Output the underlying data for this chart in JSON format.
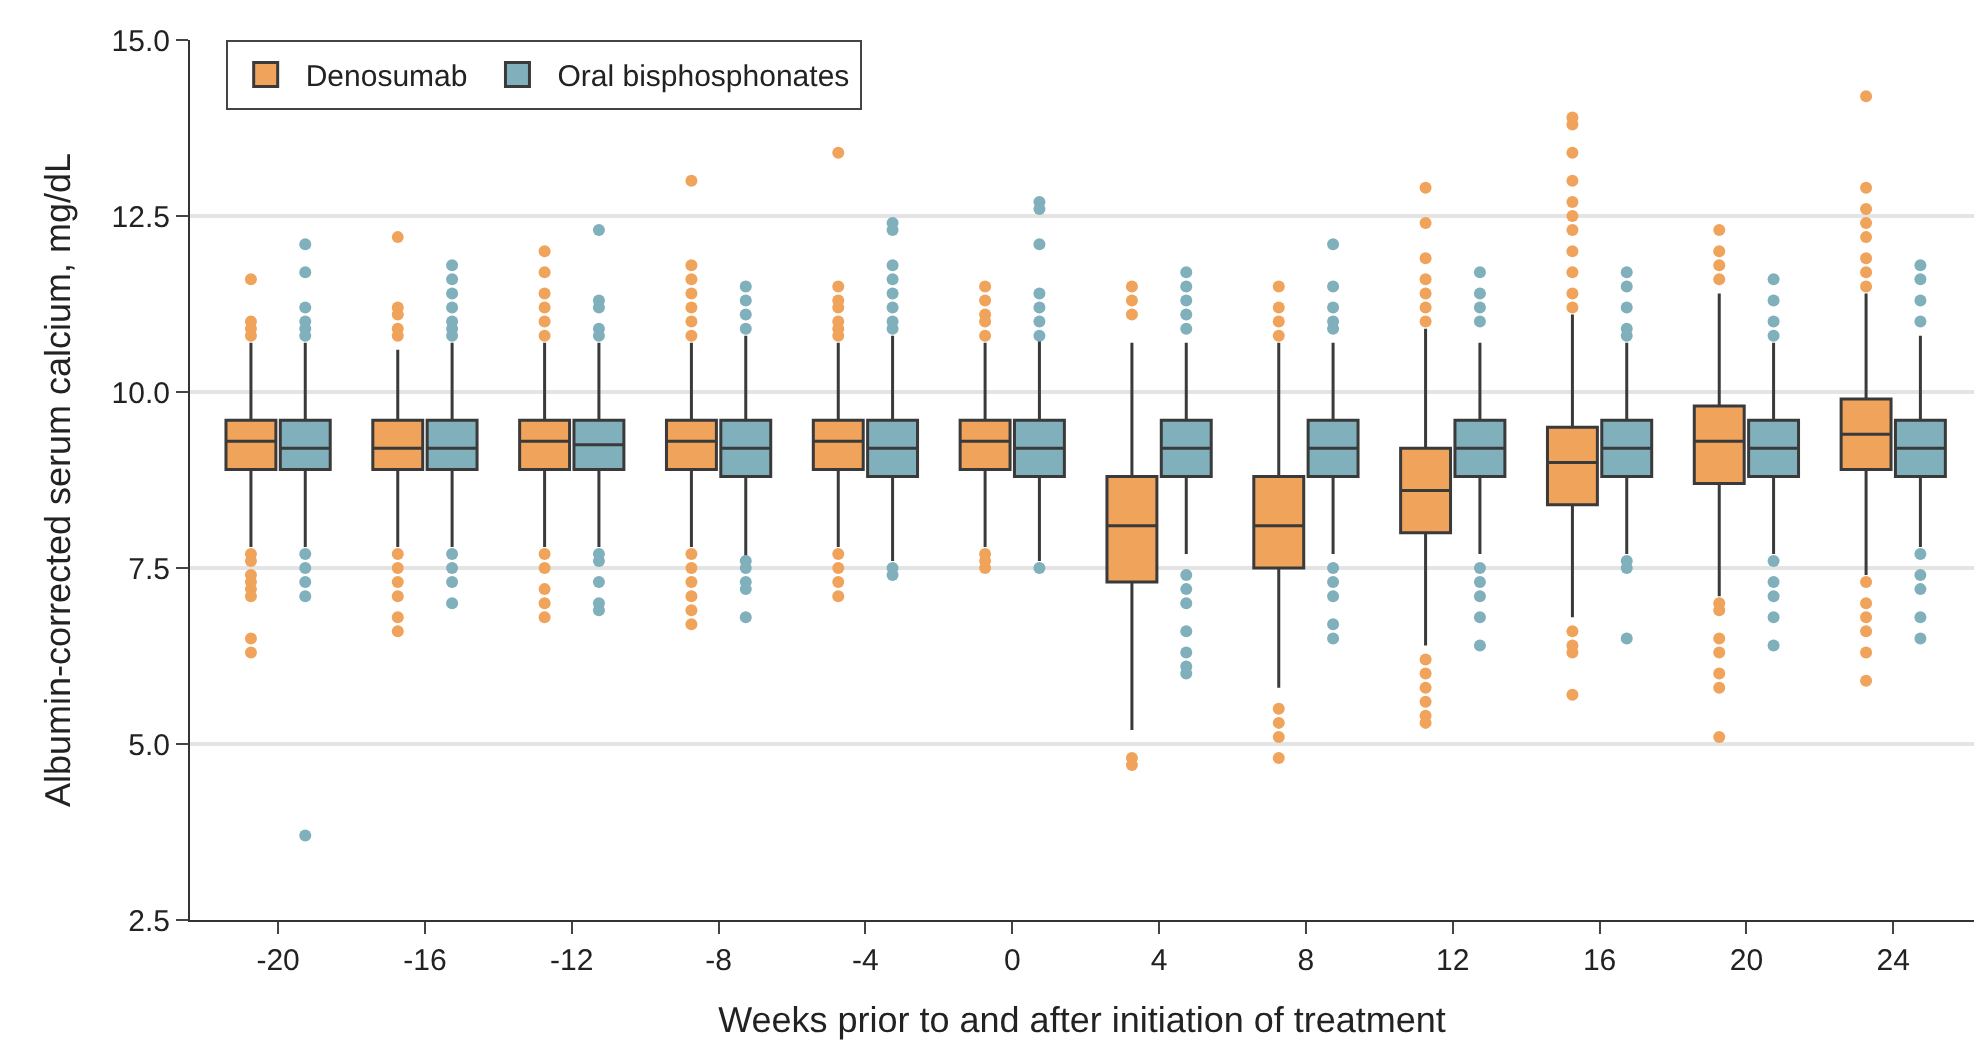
{
  "chart_data": {
    "type": "box",
    "xlabel": "Weeks prior to and after initiation of treatment",
    "ylabel": "Albumin-corrected serum calcium, mg/dL",
    "categories": [
      "-20",
      "-16",
      "-12",
      "-8",
      "-4",
      "0",
      "4",
      "8",
      "12",
      "16",
      "20",
      "24"
    ],
    "ylim": [
      2.5,
      15.0
    ],
    "yticks": [
      {
        "value": 2.5,
        "label": "2.5"
      },
      {
        "value": 5.0,
        "label": "5.0"
      },
      {
        "value": 7.5,
        "label": "7.5"
      },
      {
        "value": 10.0,
        "label": "10.0"
      },
      {
        "value": 12.5,
        "label": "12.5"
      },
      {
        "value": 15.0,
        "label": "15.0"
      }
    ],
    "grid": "y",
    "legend": "top left",
    "series": [
      {
        "name": "Denosumab",
        "color": "#f0a35a",
        "boxes": [
          {
            "low": 7.8,
            "q1": 8.9,
            "median": 9.3,
            "q3": 9.6,
            "high": 10.7,
            "outliers": [
              11.6,
              11.0,
              10.9,
              10.8,
              7.7,
              7.6,
              7.4,
              7.3,
              7.2,
              7.1,
              6.5,
              6.3
            ]
          },
          {
            "low": 7.8,
            "q1": 8.9,
            "median": 9.2,
            "q3": 9.6,
            "high": 10.6,
            "outliers": [
              12.2,
              11.2,
              11.1,
              10.9,
              10.8,
              7.7,
              7.5,
              7.3,
              7.1,
              6.8,
              6.6
            ]
          },
          {
            "low": 7.8,
            "q1": 8.9,
            "median": 9.3,
            "q3": 9.6,
            "high": 10.7,
            "outliers": [
              12.0,
              11.7,
              11.4,
              11.2,
              11.0,
              10.8,
              7.7,
              7.5,
              7.2,
              7.0,
              6.8
            ]
          },
          {
            "low": 7.8,
            "q1": 8.9,
            "median": 9.3,
            "q3": 9.6,
            "high": 10.7,
            "outliers": [
              13.0,
              11.8,
              11.6,
              11.4,
              11.2,
              11.0,
              10.8,
              7.7,
              7.5,
              7.3,
              7.1,
              6.9,
              6.7
            ]
          },
          {
            "low": 7.8,
            "q1": 8.9,
            "median": 9.3,
            "q3": 9.6,
            "high": 10.7,
            "outliers": [
              13.4,
              11.5,
              11.3,
              11.2,
              11.0,
              10.9,
              10.8,
              7.7,
              7.5,
              7.3,
              7.1
            ]
          },
          {
            "low": 7.8,
            "q1": 8.9,
            "median": 9.3,
            "q3": 9.6,
            "high": 10.7,
            "outliers": [
              11.5,
              11.3,
              11.1,
              11.0,
              10.8,
              7.7,
              7.6,
              7.5
            ]
          },
          {
            "low": 5.2,
            "q1": 7.3,
            "median": 8.1,
            "q3": 8.8,
            "high": 10.7,
            "outliers": [
              11.5,
              11.3,
              11.1,
              4.8,
              4.7
            ]
          },
          {
            "low": 5.8,
            "q1": 7.5,
            "median": 8.1,
            "q3": 8.8,
            "high": 10.7,
            "outliers": [
              11.5,
              11.2,
              11.0,
              10.8,
              5.5,
              5.3,
              5.1,
              4.8
            ]
          },
          {
            "low": 6.4,
            "q1": 8.0,
            "median": 8.6,
            "q3": 9.2,
            "high": 10.9,
            "outliers": [
              12.9,
              12.4,
              11.9,
              11.6,
              11.4,
              11.2,
              11.0,
              6.2,
              6.0,
              5.8,
              5.6,
              5.4,
              5.3
            ]
          },
          {
            "low": 6.8,
            "q1": 8.4,
            "median": 9.0,
            "q3": 9.5,
            "high": 11.1,
            "outliers": [
              13.9,
              13.8,
              13.4,
              13.0,
              12.7,
              12.5,
              12.3,
              12.0,
              11.7,
              11.4,
              11.2,
              6.6,
              6.4,
              6.3,
              5.7
            ]
          },
          {
            "low": 7.1,
            "q1": 8.7,
            "median": 9.3,
            "q3": 9.8,
            "high": 11.4,
            "outliers": [
              12.3,
              12.0,
              11.8,
              11.6,
              7.0,
              6.9,
              6.5,
              6.3,
              6.0,
              5.8,
              5.1
            ]
          },
          {
            "low": 7.4,
            "q1": 8.9,
            "median": 9.4,
            "q3": 9.9,
            "high": 11.4,
            "outliers": [
              14.2,
              12.9,
              12.6,
              12.4,
              12.2,
              11.9,
              11.7,
              11.5,
              7.3,
              7.0,
              6.8,
              6.6,
              6.3,
              5.9
            ]
          }
        ]
      },
      {
        "name": "Oral bisphosphonates",
        "color": "#7fb0bc",
        "boxes": [
          {
            "low": 7.8,
            "q1": 8.9,
            "median": 9.2,
            "q3": 9.6,
            "high": 10.7,
            "outliers": [
              12.1,
              11.7,
              11.2,
              11.0,
              10.9,
              10.8,
              7.7,
              7.5,
              7.3,
              7.1,
              3.7
            ]
          },
          {
            "low": 7.8,
            "q1": 8.9,
            "median": 9.2,
            "q3": 9.6,
            "high": 10.7,
            "outliers": [
              11.8,
              11.6,
              11.4,
              11.2,
              11.0,
              10.9,
              10.8,
              7.7,
              7.5,
              7.3,
              7.0
            ]
          },
          {
            "low": 7.8,
            "q1": 8.9,
            "median": 9.25,
            "q3": 9.6,
            "high": 10.7,
            "outliers": [
              12.3,
              11.3,
              11.2,
              10.9,
              10.8,
              7.7,
              7.6,
              7.3,
              7.0,
              6.9
            ]
          },
          {
            "low": 7.6,
            "q1": 8.8,
            "median": 9.2,
            "q3": 9.6,
            "high": 10.8,
            "outliers": [
              11.5,
              11.3,
              11.1,
              10.9,
              7.6,
              7.5,
              7.3,
              7.2,
              6.8
            ]
          },
          {
            "low": 7.6,
            "q1": 8.8,
            "median": 9.2,
            "q3": 9.6,
            "high": 10.8,
            "outliers": [
              12.4,
              12.3,
              11.8,
              11.6,
              11.4,
              11.2,
              11.0,
              10.9,
              7.5,
              7.4
            ]
          },
          {
            "low": 7.6,
            "q1": 8.8,
            "median": 9.2,
            "q3": 9.6,
            "high": 10.8,
            "outliers": [
              12.7,
              12.6,
              12.1,
              11.4,
              11.2,
              11.0,
              10.8,
              7.5
            ]
          },
          {
            "low": 7.7,
            "q1": 8.8,
            "median": 9.2,
            "q3": 9.6,
            "high": 10.7,
            "outliers": [
              11.7,
              11.5,
              11.3,
              11.1,
              10.9,
              7.4,
              7.2,
              7.0,
              6.6,
              6.3,
              6.1,
              6.0
            ]
          },
          {
            "low": 7.7,
            "q1": 8.8,
            "median": 9.2,
            "q3": 9.6,
            "high": 10.7,
            "outliers": [
              12.1,
              11.5,
              11.2,
              11.0,
              10.9,
              7.5,
              7.3,
              7.1,
              6.7,
              6.5
            ]
          },
          {
            "low": 7.7,
            "q1": 8.8,
            "median": 9.2,
            "q3": 9.6,
            "high": 10.7,
            "outliers": [
              11.7,
              11.4,
              11.2,
              11.0,
              7.5,
              7.3,
              7.1,
              6.8,
              6.4
            ]
          },
          {
            "low": 7.7,
            "q1": 8.8,
            "median": 9.2,
            "q3": 9.6,
            "high": 10.7,
            "outliers": [
              11.7,
              11.5,
              11.2,
              10.9,
              10.8,
              7.6,
              7.5,
              6.5
            ]
          },
          {
            "low": 7.7,
            "q1": 8.8,
            "median": 9.2,
            "q3": 9.6,
            "high": 10.7,
            "outliers": [
              11.6,
              11.3,
              11.0,
              10.8,
              7.6,
              7.3,
              7.1,
              6.8,
              6.4
            ]
          },
          {
            "low": 7.8,
            "q1": 8.8,
            "median": 9.2,
            "q3": 9.6,
            "high": 10.8,
            "outliers": [
              11.8,
              11.6,
              11.3,
              11.0,
              7.7,
              7.4,
              7.2,
              6.8,
              6.5
            ]
          }
        ]
      }
    ]
  }
}
